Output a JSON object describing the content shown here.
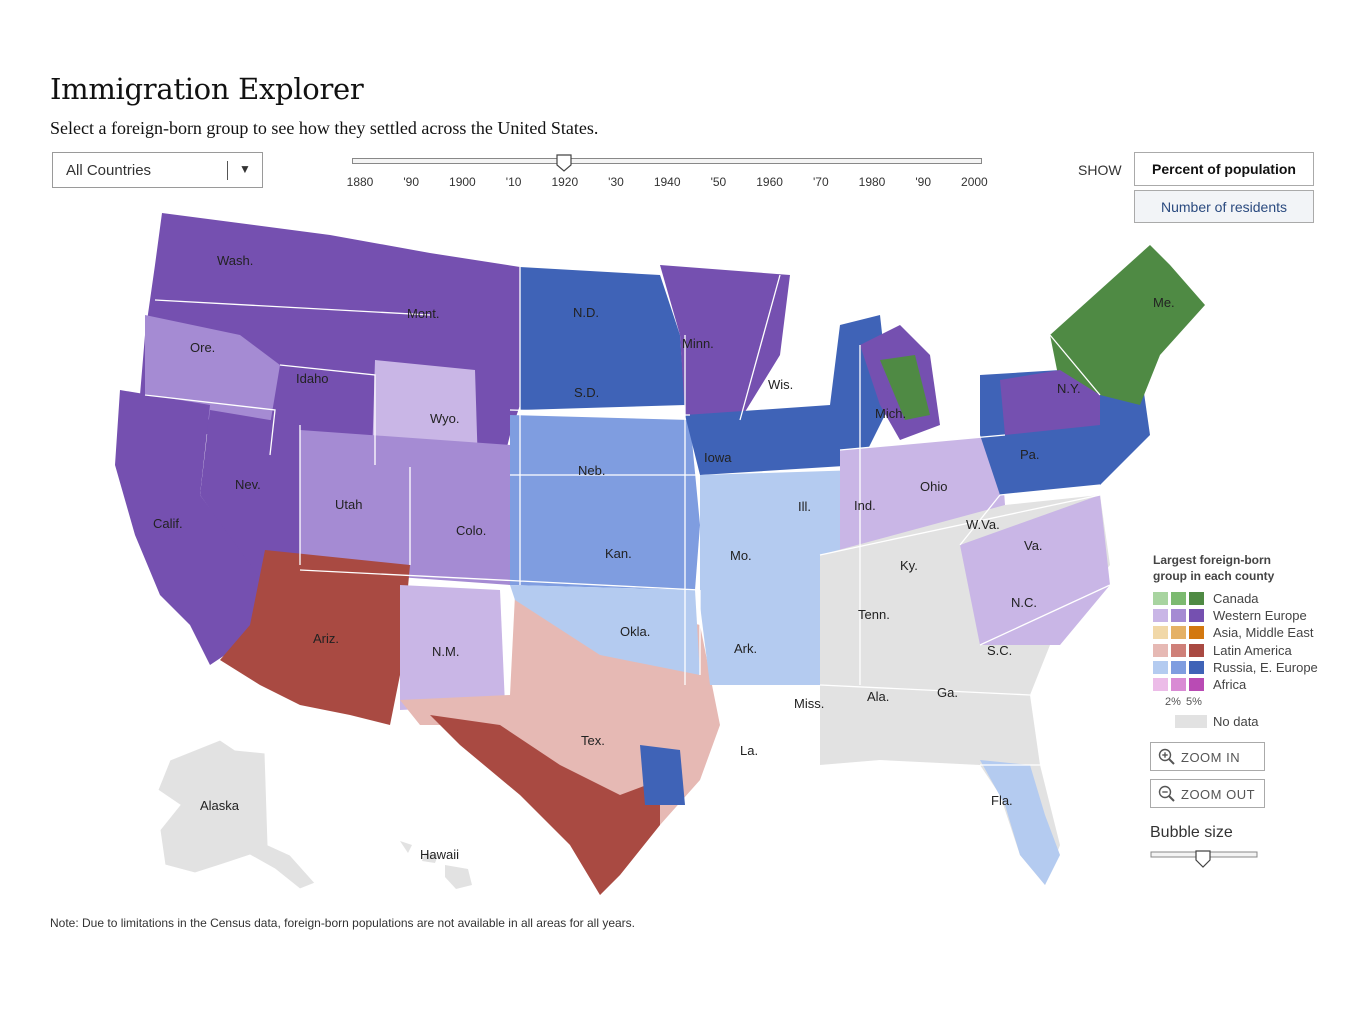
{
  "header": {
    "title": "Immigration Explorer",
    "subtitle": "Select a foreign-born group to see how they settled across the United States."
  },
  "country_select": {
    "selected": "All Countries"
  },
  "year_slider": {
    "ticks": [
      "1880",
      "'90",
      "1900",
      "'10",
      "1920",
      "'30",
      "1940",
      "'50",
      "1960",
      "'70",
      "1980",
      "'90",
      "2000"
    ],
    "selected_year": "1920"
  },
  "show": {
    "label": "SHOW",
    "options": [
      "Percent of population",
      "Number of residents"
    ],
    "active": "Percent of population"
  },
  "map": {
    "state_labels": [
      "Wash.",
      "Mont.",
      "Ore.",
      "Idaho",
      "Wyo.",
      "Nev.",
      "Utah",
      "Calif.",
      "Colo.",
      "Ariz.",
      "N.M.",
      "N.D.",
      "S.D.",
      "Neb.",
      "Kan.",
      "Okla.",
      "Tex.",
      "Minn.",
      "Iowa",
      "Mo.",
      "Ark.",
      "La.",
      "Wis.",
      "Ill.",
      "Mich.",
      "Ind.",
      "Ohio",
      "Ky.",
      "Tenn.",
      "Miss.",
      "Ala.",
      "Ga.",
      "Fla.",
      "S.C.",
      "N.C.",
      "Va.",
      "W.Va.",
      "Pa.",
      "N.Y.",
      "Me.",
      "Alaska",
      "Hawaii"
    ]
  },
  "legend": {
    "title_line1": "Largest foreign-born",
    "title_line2": "group in each county",
    "groups": [
      {
        "label": "Canada",
        "colors": [
          "#a8d4a0",
          "#7cba70",
          "#4f8a44"
        ]
      },
      {
        "label": "Western Europe",
        "colors": [
          "#c9b6e6",
          "#a58bd3",
          "#7550b0"
        ]
      },
      {
        "label": "Asia, Middle East",
        "colors": [
          "#f1d8a8",
          "#e5b165",
          "#d3780f"
        ]
      },
      {
        "label": "Latin America",
        "colors": [
          "#e6b9b4",
          "#cf8079",
          "#a94a42"
        ]
      },
      {
        "label": "Russia, E. Europe",
        "colors": [
          "#b4cbf0",
          "#7f9de0",
          "#3f63b7"
        ]
      },
      {
        "label": "Africa",
        "colors": [
          "#ecbce8",
          "#d98bd4",
          "#b94bb4"
        ]
      }
    ],
    "pct_low": "2%",
    "pct_high": "5%",
    "no_data": "No data",
    "no_data_color": "#e2e2e2"
  },
  "zoom": {
    "in_label": "ZOOM IN",
    "out_label": "ZOOM OUT"
  },
  "bubble": {
    "label": "Bubble size"
  },
  "note": "Note: Due to limitations in the Census data, foreign-born  populations are not available in all areas for all years."
}
